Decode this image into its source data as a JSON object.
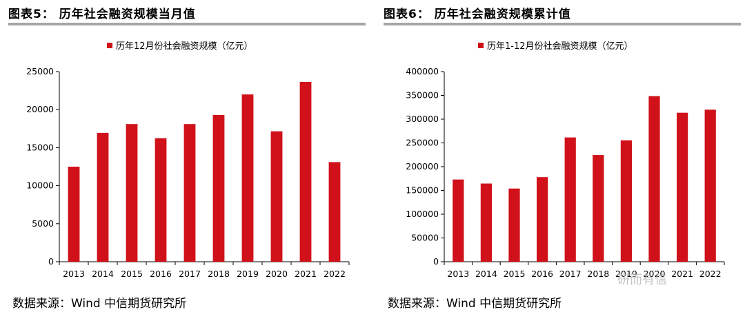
{
  "colors": {
    "bar": "#d0111a",
    "rule": "#a6a6a6",
    "axis": "#000000"
  },
  "watermark": "研而有信",
  "chart_data": [
    {
      "type": "bar",
      "figure_title": "图表5：  历年社会融资规模当月值",
      "legend": "历年12月份社会融资规模（亿元）",
      "categories": [
        "2013",
        "2014",
        "2015",
        "2016",
        "2017",
        "2018",
        "2019",
        "2020",
        "2021",
        "2022"
      ],
      "values": [
        12500,
        16950,
        18100,
        16250,
        18100,
        19300,
        22000,
        17150,
        23650,
        13100
      ],
      "ylim": [
        0,
        25000
      ],
      "yticks": [
        0,
        5000,
        10000,
        15000,
        20000,
        25000
      ],
      "source": "数据来源：Wind  中信期货研究所"
    },
    {
      "type": "bar",
      "figure_title": "图表6：  历年社会融资规模累计值",
      "legend": "历年1-12月份社会融资规模（亿元）",
      "categories": [
        "2013",
        "2014",
        "2015",
        "2016",
        "2017",
        "2018",
        "2019",
        "2020",
        "2021",
        "2022"
      ],
      "values": [
        173000,
        164500,
        154000,
        178000,
        261500,
        224500,
        255500,
        348500,
        313500,
        320000
      ],
      "ylim": [
        0,
        400000
      ],
      "yticks": [
        0,
        50000,
        100000,
        150000,
        200000,
        250000,
        300000,
        350000,
        400000
      ],
      "source": "数据来源：Wind  中信期货研究所"
    }
  ]
}
